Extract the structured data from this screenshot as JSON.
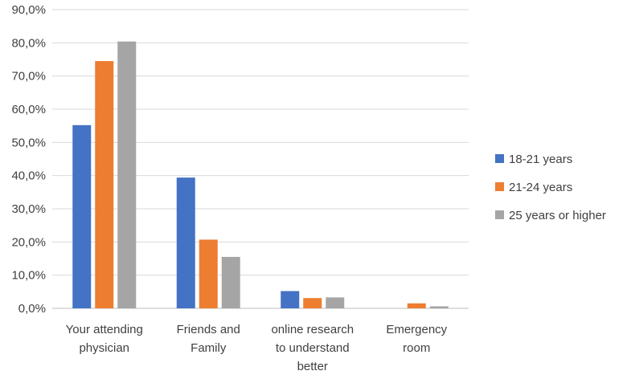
{
  "chart_data": {
    "type": "bar",
    "categories": [
      [
        "Your attending",
        "physician"
      ],
      [
        "Friends and",
        "Family"
      ],
      [
        "online research",
        "to understand",
        "better"
      ],
      [
        "Emergency",
        "room"
      ]
    ],
    "series": [
      {
        "name": "18-21 years",
        "color": "#4472C4",
        "values": [
          55.2,
          39.4,
          5.2,
          0.0
        ]
      },
      {
        "name": "21-24 years",
        "color": "#ED7D31",
        "values": [
          74.5,
          20.7,
          3.1,
          1.5
        ]
      },
      {
        "name": "25 years or higher",
        "color": "#A5A5A5",
        "values": [
          80.4,
          15.5,
          3.3,
          0.6
        ]
      }
    ],
    "yticks": [
      "0,0%",
      "10,0%",
      "20,0%",
      "30,0%",
      "40,0%",
      "50,0%",
      "60,0%",
      "70,0%",
      "80,0%",
      "90,0%"
    ],
    "ylim": [
      0,
      90
    ],
    "grid": true,
    "legend_position": "right"
  }
}
